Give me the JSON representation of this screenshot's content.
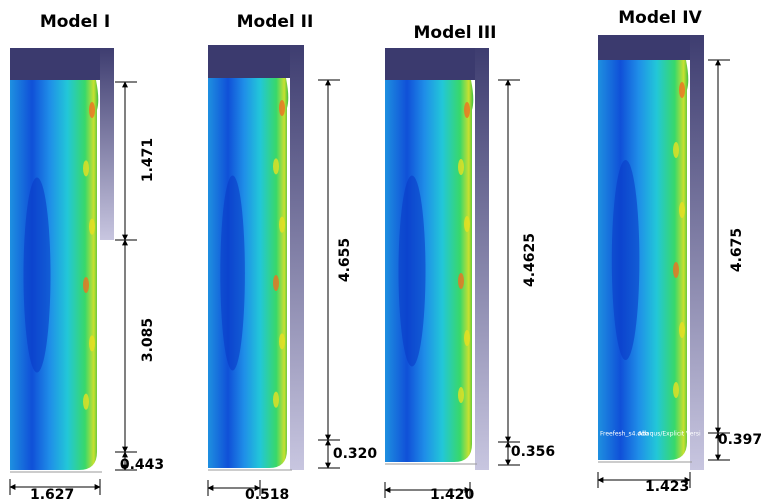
{
  "panels": [
    {
      "title": "Model I",
      "vertical_dims": [
        "1.471",
        "3.085",
        "0.443"
      ],
      "width_dim": "1.627"
    },
    {
      "title": "Model II",
      "vertical_dims": [
        "4.655",
        "0.320"
      ],
      "width_dim": "0.518"
    },
    {
      "title": "Model III",
      "vertical_dims": [
        "4.4625",
        "0.356"
      ],
      "width_dim": "1.420"
    },
    {
      "title": "Model IV",
      "vertical_dims": [
        "4.675",
        "0.397"
      ],
      "width_dim": "1.423",
      "watermark": [
        "Freefesh_s4.odb",
        "Abaqus/Explicit Versi"
      ]
    }
  ]
}
